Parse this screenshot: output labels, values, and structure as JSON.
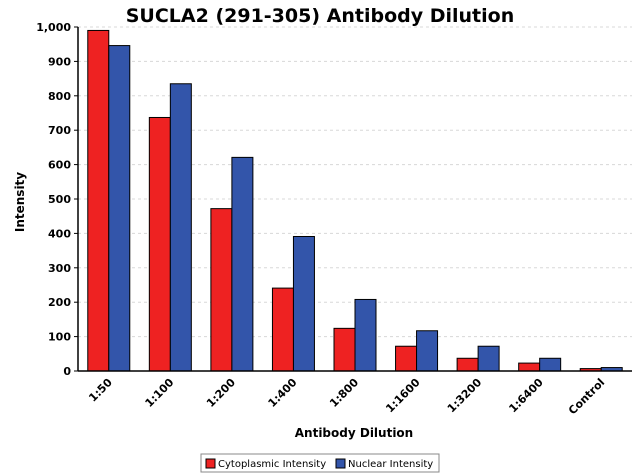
{
  "chart_data": {
    "type": "bar",
    "title": "SUCLA2 (291-305) Antibody Dilution",
    "xlabel": "Antibody Dilution",
    "ylabel": "Intensity",
    "categories": [
      "1:50",
      "1:100",
      "1:200",
      "1:400",
      "1:800",
      "1:1600",
      "1:3200",
      "1:6400",
      "Control"
    ],
    "series": [
      {
        "name": "Cytoplasmic Intensity",
        "color": "#ee2222",
        "values": [
          990,
          737,
          472,
          241,
          124,
          72,
          37,
          23,
          7
        ]
      },
      {
        "name": "Nuclear Intensity",
        "color": "#3355aa",
        "values": [
          946,
          835,
          621,
          391,
          208,
          117,
          72,
          37,
          10
        ]
      }
    ],
    "ylim": [
      0,
      1000
    ],
    "yticks": [
      0,
      100,
      200,
      300,
      400,
      500,
      600,
      700,
      800,
      900,
      1000
    ],
    "ytick_labels": [
      "0",
      "100",
      "200",
      "300",
      "400",
      "500",
      "600",
      "700",
      "800",
      "900",
      "1,000"
    ],
    "grid": true,
    "legend_position": "bottom"
  }
}
